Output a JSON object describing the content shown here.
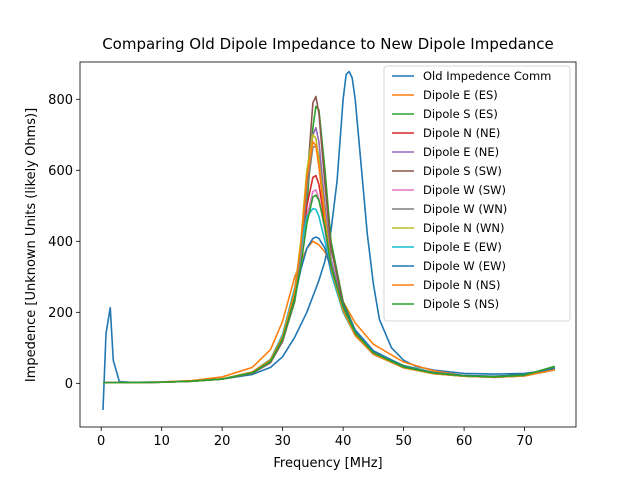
{
  "chart_data": {
    "type": "line",
    "title": "Comparing Old Dipole Impedance to New Dipole Impedance",
    "xlabel": "Frequency [MHz]",
    "ylabel": "Impedence [Unknown Units (likely Ohms)]",
    "xlim": [
      -3.5,
      78.5
    ],
    "ylim": [
      -123,
      905
    ],
    "xticks": [
      0,
      10,
      20,
      30,
      40,
      50,
      60,
      70
    ],
    "yticks": [
      0,
      200,
      400,
      600,
      800
    ],
    "grid": false,
    "legend_position": "upper right",
    "series": [
      {
        "name": "Old Impedence Comm",
        "color": "#1f77b4",
        "x": [
          0.3,
          0.8,
          1.5,
          2.0,
          3.0,
          5,
          10,
          15,
          20,
          25,
          28,
          30,
          32,
          34,
          36,
          37,
          38,
          39,
          40,
          40.5,
          41,
          41.5,
          42,
          43,
          44,
          45,
          46,
          48,
          50,
          52,
          55,
          60,
          65,
          70,
          73,
          75
        ],
        "y": [
          -75,
          140,
          213,
          65,
          5,
          3,
          4,
          7,
          12,
          25,
          45,
          75,
          130,
          200,
          290,
          345,
          430,
          570,
          800,
          870,
          878,
          860,
          800,
          610,
          420,
          280,
          180,
          100,
          65,
          48,
          37,
          28,
          26,
          28,
          35,
          42
        ]
      },
      {
        "name": "Dipole E (ES)",
        "color": "#ff7f0e",
        "x": [
          0.3,
          5,
          10,
          15,
          20,
          25,
          28,
          30,
          32,
          34,
          35,
          36,
          37,
          38,
          40,
          42,
          45,
          50,
          55,
          60,
          65,
          70,
          75
        ],
        "y": [
          2,
          2,
          4,
          8,
          18,
          45,
          95,
          175,
          300,
          380,
          400,
          390,
          370,
          330,
          230,
          170,
          110,
          60,
          35,
          22,
          18,
          22,
          40
        ]
      },
      {
        "name": "Dipole S (ES)",
        "color": "#2ca02c",
        "x": [
          0.3,
          5,
          10,
          15,
          20,
          25,
          28,
          30,
          32,
          33,
          34,
          35,
          35.5,
          36,
          37,
          38,
          40,
          42,
          45,
          50,
          55,
          60,
          65,
          70,
          73,
          75
        ],
        "y": [
          2,
          2,
          3,
          6,
          12,
          28,
          60,
          120,
          230,
          340,
          500,
          720,
          780,
          770,
          600,
          400,
          230,
          150,
          90,
          50,
          30,
          22,
          20,
          25,
          35,
          45
        ]
      },
      {
        "name": "Dipole N (NE)",
        "color": "#d62728",
        "x": [
          0.3,
          5,
          10,
          15,
          20,
          25,
          28,
          30,
          32,
          33,
          34,
          35,
          35.5,
          36,
          37,
          38,
          40,
          42,
          45,
          50,
          55,
          60,
          65,
          70,
          75
        ],
        "y": [
          2,
          2,
          3,
          6,
          12,
          30,
          62,
          125,
          240,
          350,
          500,
          580,
          585,
          560,
          450,
          330,
          210,
          140,
          85,
          45,
          28,
          20,
          18,
          22,
          40
        ]
      },
      {
        "name": "Dipole E (NE)",
        "color": "#9467bd",
        "x": [
          0.3,
          5,
          10,
          15,
          20,
          25,
          28,
          30,
          32,
          33,
          34,
          35,
          35.5,
          36,
          37,
          38,
          40,
          42,
          45,
          50,
          55,
          60,
          65,
          70,
          75
        ],
        "y": [
          2,
          2,
          3,
          6,
          12,
          30,
          62,
          125,
          250,
          380,
          560,
          700,
          720,
          680,
          500,
          350,
          215,
          140,
          85,
          45,
          28,
          20,
          18,
          22,
          40
        ]
      },
      {
        "name": "Dipole S (SW)",
        "color": "#8c564b",
        "x": [
          0.3,
          5,
          10,
          15,
          20,
          25,
          28,
          30,
          32,
          33,
          34,
          35,
          35.5,
          36,
          37,
          38,
          40,
          42,
          45,
          50,
          55,
          60,
          65,
          70,
          75
        ],
        "y": [
          2,
          2,
          3,
          6,
          12,
          28,
          58,
          118,
          235,
          360,
          560,
          790,
          808,
          760,
          560,
          380,
          225,
          145,
          88,
          48,
          30,
          22,
          19,
          24,
          42
        ]
      },
      {
        "name": "Dipole W (SW)",
        "color": "#e377c2",
        "x": [
          0.3,
          5,
          10,
          15,
          20,
          25,
          28,
          30,
          32,
          33,
          34,
          35,
          35.5,
          36,
          37,
          38,
          40,
          42,
          45,
          50,
          55,
          60,
          65,
          70,
          75
        ],
        "y": [
          2,
          2,
          3,
          6,
          12,
          30,
          62,
          125,
          240,
          340,
          470,
          540,
          545,
          520,
          430,
          320,
          205,
          135,
          82,
          44,
          27,
          20,
          17,
          21,
          38
        ]
      },
      {
        "name": "Dipole W (WN)",
        "color": "#7f7f7f",
        "x": [
          0.3,
          5,
          10,
          15,
          20,
          25,
          28,
          30,
          32,
          33,
          34,
          35,
          35.5,
          36,
          37,
          38,
          40,
          42,
          45,
          50,
          55,
          60,
          65,
          70,
          75
        ],
        "y": [
          2,
          2,
          3,
          6,
          12,
          30,
          62,
          125,
          245,
          370,
          540,
          665,
          668,
          640,
          480,
          340,
          210,
          138,
          84,
          45,
          28,
          20,
          18,
          22,
          40
        ]
      },
      {
        "name": "Dipole N (WN)",
        "color": "#bcbd22",
        "x": [
          0.3,
          5,
          10,
          15,
          20,
          25,
          28,
          30,
          32,
          33,
          34,
          35,
          35.5,
          36,
          37,
          38,
          40,
          42,
          45,
          50,
          55,
          60,
          65,
          70,
          75
        ],
        "y": [
          2,
          2,
          3,
          6,
          12,
          32,
          66,
          132,
          260,
          400,
          600,
          700,
          690,
          630,
          470,
          330,
          205,
          135,
          82,
          44,
          27,
          20,
          17,
          21,
          38
        ]
      },
      {
        "name": "Dipole E (EW)",
        "color": "#17becf",
        "x": [
          0.3,
          5,
          10,
          15,
          20,
          25,
          28,
          30,
          32,
          33,
          34,
          35,
          35.5,
          36,
          37,
          38,
          40,
          42,
          45,
          50,
          55,
          60,
          65,
          70,
          75
        ],
        "y": [
          2,
          2,
          3,
          6,
          12,
          32,
          68,
          138,
          270,
          380,
          470,
          492,
          490,
          470,
          400,
          310,
          200,
          135,
          82,
          44,
          27,
          20,
          17,
          21,
          38
        ]
      },
      {
        "name": "Dipole W (EW)",
        "color": "#1f77b4",
        "x": [
          0.3,
          5,
          10,
          15,
          20,
          25,
          28,
          30,
          32,
          33,
          34,
          35,
          35.5,
          36,
          37,
          38,
          40,
          42,
          45,
          50,
          55,
          60,
          65,
          70,
          75
        ],
        "y": [
          2,
          2,
          3,
          6,
          12,
          30,
          62,
          125,
          240,
          320,
          380,
          408,
          412,
          408,
          380,
          320,
          220,
          150,
          92,
          48,
          30,
          22,
          19,
          24,
          42
        ]
      },
      {
        "name": "Dipole N (NS)",
        "color": "#ff7f0e",
        "x": [
          0.3,
          5,
          10,
          15,
          20,
          25,
          28,
          30,
          32,
          33,
          34,
          35,
          35.5,
          36,
          37,
          38,
          40,
          42,
          45,
          50,
          55,
          60,
          65,
          70,
          75
        ],
        "y": [
          2,
          2,
          3,
          6,
          12,
          32,
          66,
          132,
          260,
          390,
          580,
          680,
          670,
          610,
          460,
          325,
          205,
          135,
          82,
          44,
          27,
          20,
          17,
          21,
          38
        ]
      },
      {
        "name": "Dipole S (NS)",
        "color": "#2ca02c",
        "x": [
          0.3,
          5,
          10,
          15,
          20,
          25,
          28,
          30,
          32,
          33,
          34,
          35,
          35.5,
          36,
          37,
          38,
          40,
          42,
          45,
          50,
          55,
          60,
          65,
          70,
          75
        ],
        "y": [
          2,
          2,
          3,
          6,
          12,
          30,
          62,
          125,
          240,
          330,
          450,
          525,
          530,
          515,
          440,
          330,
          215,
          142,
          86,
          46,
          29,
          21,
          18,
          23,
          48
        ]
      }
    ]
  }
}
